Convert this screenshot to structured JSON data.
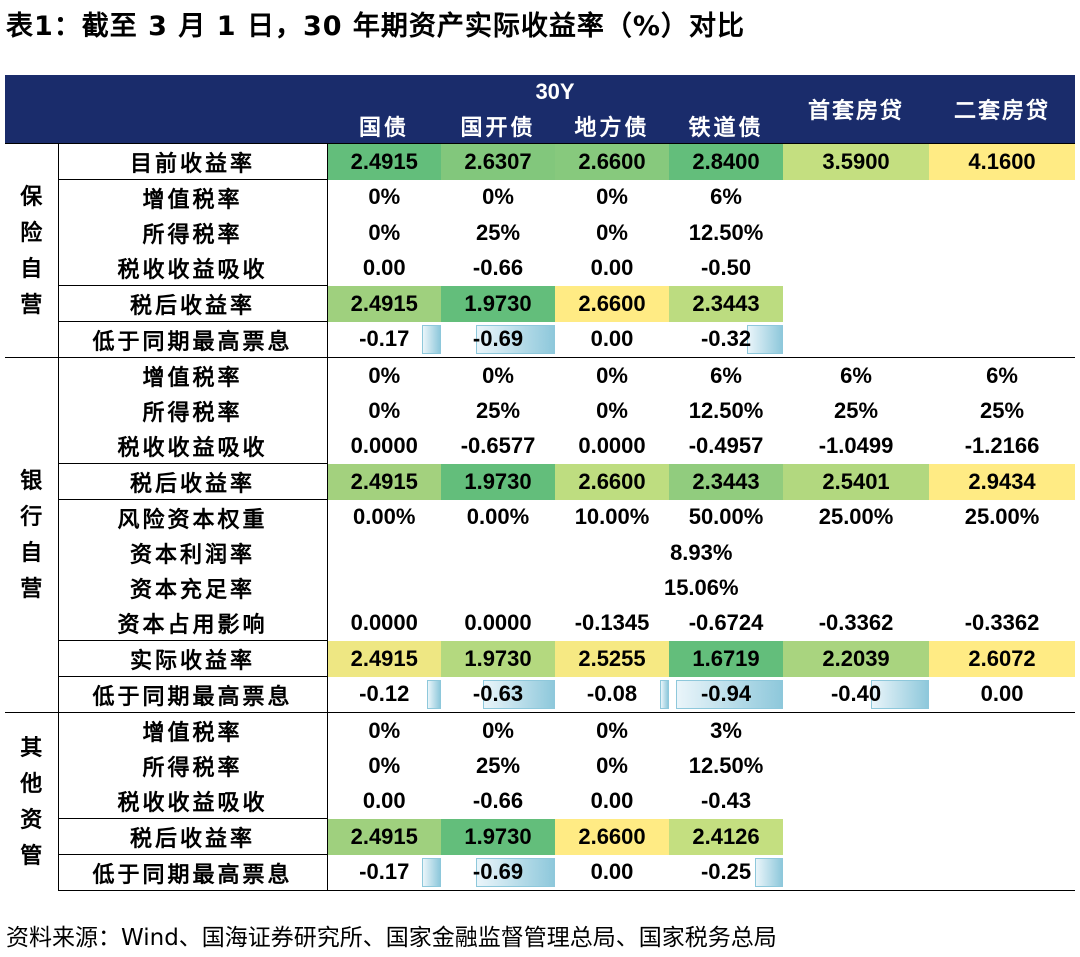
{
  "title": "表1：截至 3 月 1 日，30 年期资产实际收益率（%）对比",
  "footer": "资料来源：Wind、国海证券研究所、国家金融监督管理总局、国家税务总局",
  "header": {
    "group_label": "30Y",
    "columns": [
      "国债",
      "国开债",
      "地方债",
      "铁道债"
    ],
    "loan_columns": [
      "首套房贷",
      "二套房贷"
    ]
  },
  "sections": [
    {
      "name": "保险自营",
      "rows": [
        {
          "label": "目前收益率",
          "cells": [
            "2.4915",
            "2.6307",
            "2.6600",
            "2.8400",
            "3.5900",
            "4.1600"
          ],
          "colors": [
            "#63be7b",
            "#82c77c",
            "#87c97d",
            "#63be7b",
            "#c4df80",
            "#ffeb84"
          ]
        },
        {
          "label": "增值税率",
          "cells": [
            "0%",
            "0%",
            "0%",
            "6%",
            "",
            ""
          ]
        },
        {
          "label": "所得税率",
          "cells": [
            "0%",
            "25%",
            "0%",
            "12.50%",
            "",
            ""
          ]
        },
        {
          "label": "税收收益吸收",
          "cells": [
            "0.00",
            "-0.66",
            "0.00",
            "-0.50",
            "",
            ""
          ]
        },
        {
          "label": "税后收益率",
          "cells": [
            "2.4915",
            "1.9730",
            "2.6600",
            "2.3443",
            "",
            ""
          ],
          "colors": [
            "#9fd07e",
            "#63be7b",
            "#ffeb84",
            "#bcdc80",
            "",
            ""
          ]
        },
        {
          "label": "低于同期最高票息",
          "cells": [
            "-0.17",
            "-0.69",
            "0.00",
            "-0.32",
            "",
            ""
          ],
          "bars": [
            0.17,
            0.69,
            0,
            0.32,
            0,
            0
          ]
        }
      ]
    },
    {
      "name": "银行自营",
      "rows": [
        {
          "label": "增值税率",
          "cells": [
            "0%",
            "0%",
            "0%",
            "6%",
            "6%",
            "6%"
          ]
        },
        {
          "label": "所得税率",
          "cells": [
            "0%",
            "25%",
            "0%",
            "12.50%",
            "25%",
            "25%"
          ]
        },
        {
          "label": "税收收益吸收",
          "cells": [
            "0.0000",
            "-0.6577",
            "0.0000",
            "-0.4957",
            "-1.0499",
            "-1.2166"
          ]
        },
        {
          "label": "税后收益率",
          "cells": [
            "2.4915",
            "1.9730",
            "2.6600",
            "2.3443",
            "2.5401",
            "2.9434"
          ],
          "colors": [
            "#a3d17e",
            "#63be7b",
            "#bedd80",
            "#91cc7e",
            "#b2d87f",
            "#ffeb84"
          ]
        },
        {
          "label": "风险资本权重",
          "cells": [
            "0.00%",
            "0.00%",
            "10.00%",
            "50.00%",
            "25.00%",
            "25.00%"
          ]
        },
        {
          "label": "资本利润率",
          "merged": "8.93%"
        },
        {
          "label": "资本充足率",
          "merged": "15.06%"
        },
        {
          "label": "资本占用影响",
          "cells": [
            "0.0000",
            "0.0000",
            "-0.1345",
            "-0.6724",
            "-0.3362",
            "-0.3362"
          ]
        },
        {
          "label": "实际收益率",
          "cells": [
            "2.4915",
            "1.9730",
            "2.5255",
            "1.6719",
            "2.2039",
            "2.6072"
          ],
          "colors": [
            "#eee783",
            "#b4d97f",
            "#f6e983",
            "#63be7b",
            "#a9d47f",
            "#ffeb84"
          ]
        },
        {
          "label": "低于同期最高票息",
          "cells": [
            "-0.12",
            "-0.63",
            "-0.08",
            "-0.94",
            "-0.40",
            "0.00"
          ],
          "bars": [
            0.12,
            0.63,
            0.08,
            0.94,
            0.4,
            0
          ]
        }
      ]
    },
    {
      "name": "其他资管",
      "rows": [
        {
          "label": "增值税率",
          "cells": [
            "0%",
            "0%",
            "0%",
            "3%",
            "",
            ""
          ]
        },
        {
          "label": "所得税率",
          "cells": [
            "0%",
            "25%",
            "0%",
            "12.50%",
            "",
            ""
          ]
        },
        {
          "label": "税收收益吸收",
          "cells": [
            "0.00",
            "-0.66",
            "0.00",
            "-0.43",
            "",
            ""
          ]
        },
        {
          "label": "税后收益率",
          "cells": [
            "2.4915",
            "1.9730",
            "2.6600",
            "2.4126",
            "",
            ""
          ],
          "colors": [
            "#9fd07e",
            "#63be7b",
            "#ffeb84",
            "#c4df80",
            "",
            ""
          ]
        },
        {
          "label": "低于同期最高票息",
          "cells": [
            "-0.17",
            "-0.69",
            "0.00",
            "-0.25",
            "",
            ""
          ],
          "bars": [
            0.17,
            0.69,
            0,
            0.25,
            0,
            0
          ]
        }
      ]
    }
  ]
}
